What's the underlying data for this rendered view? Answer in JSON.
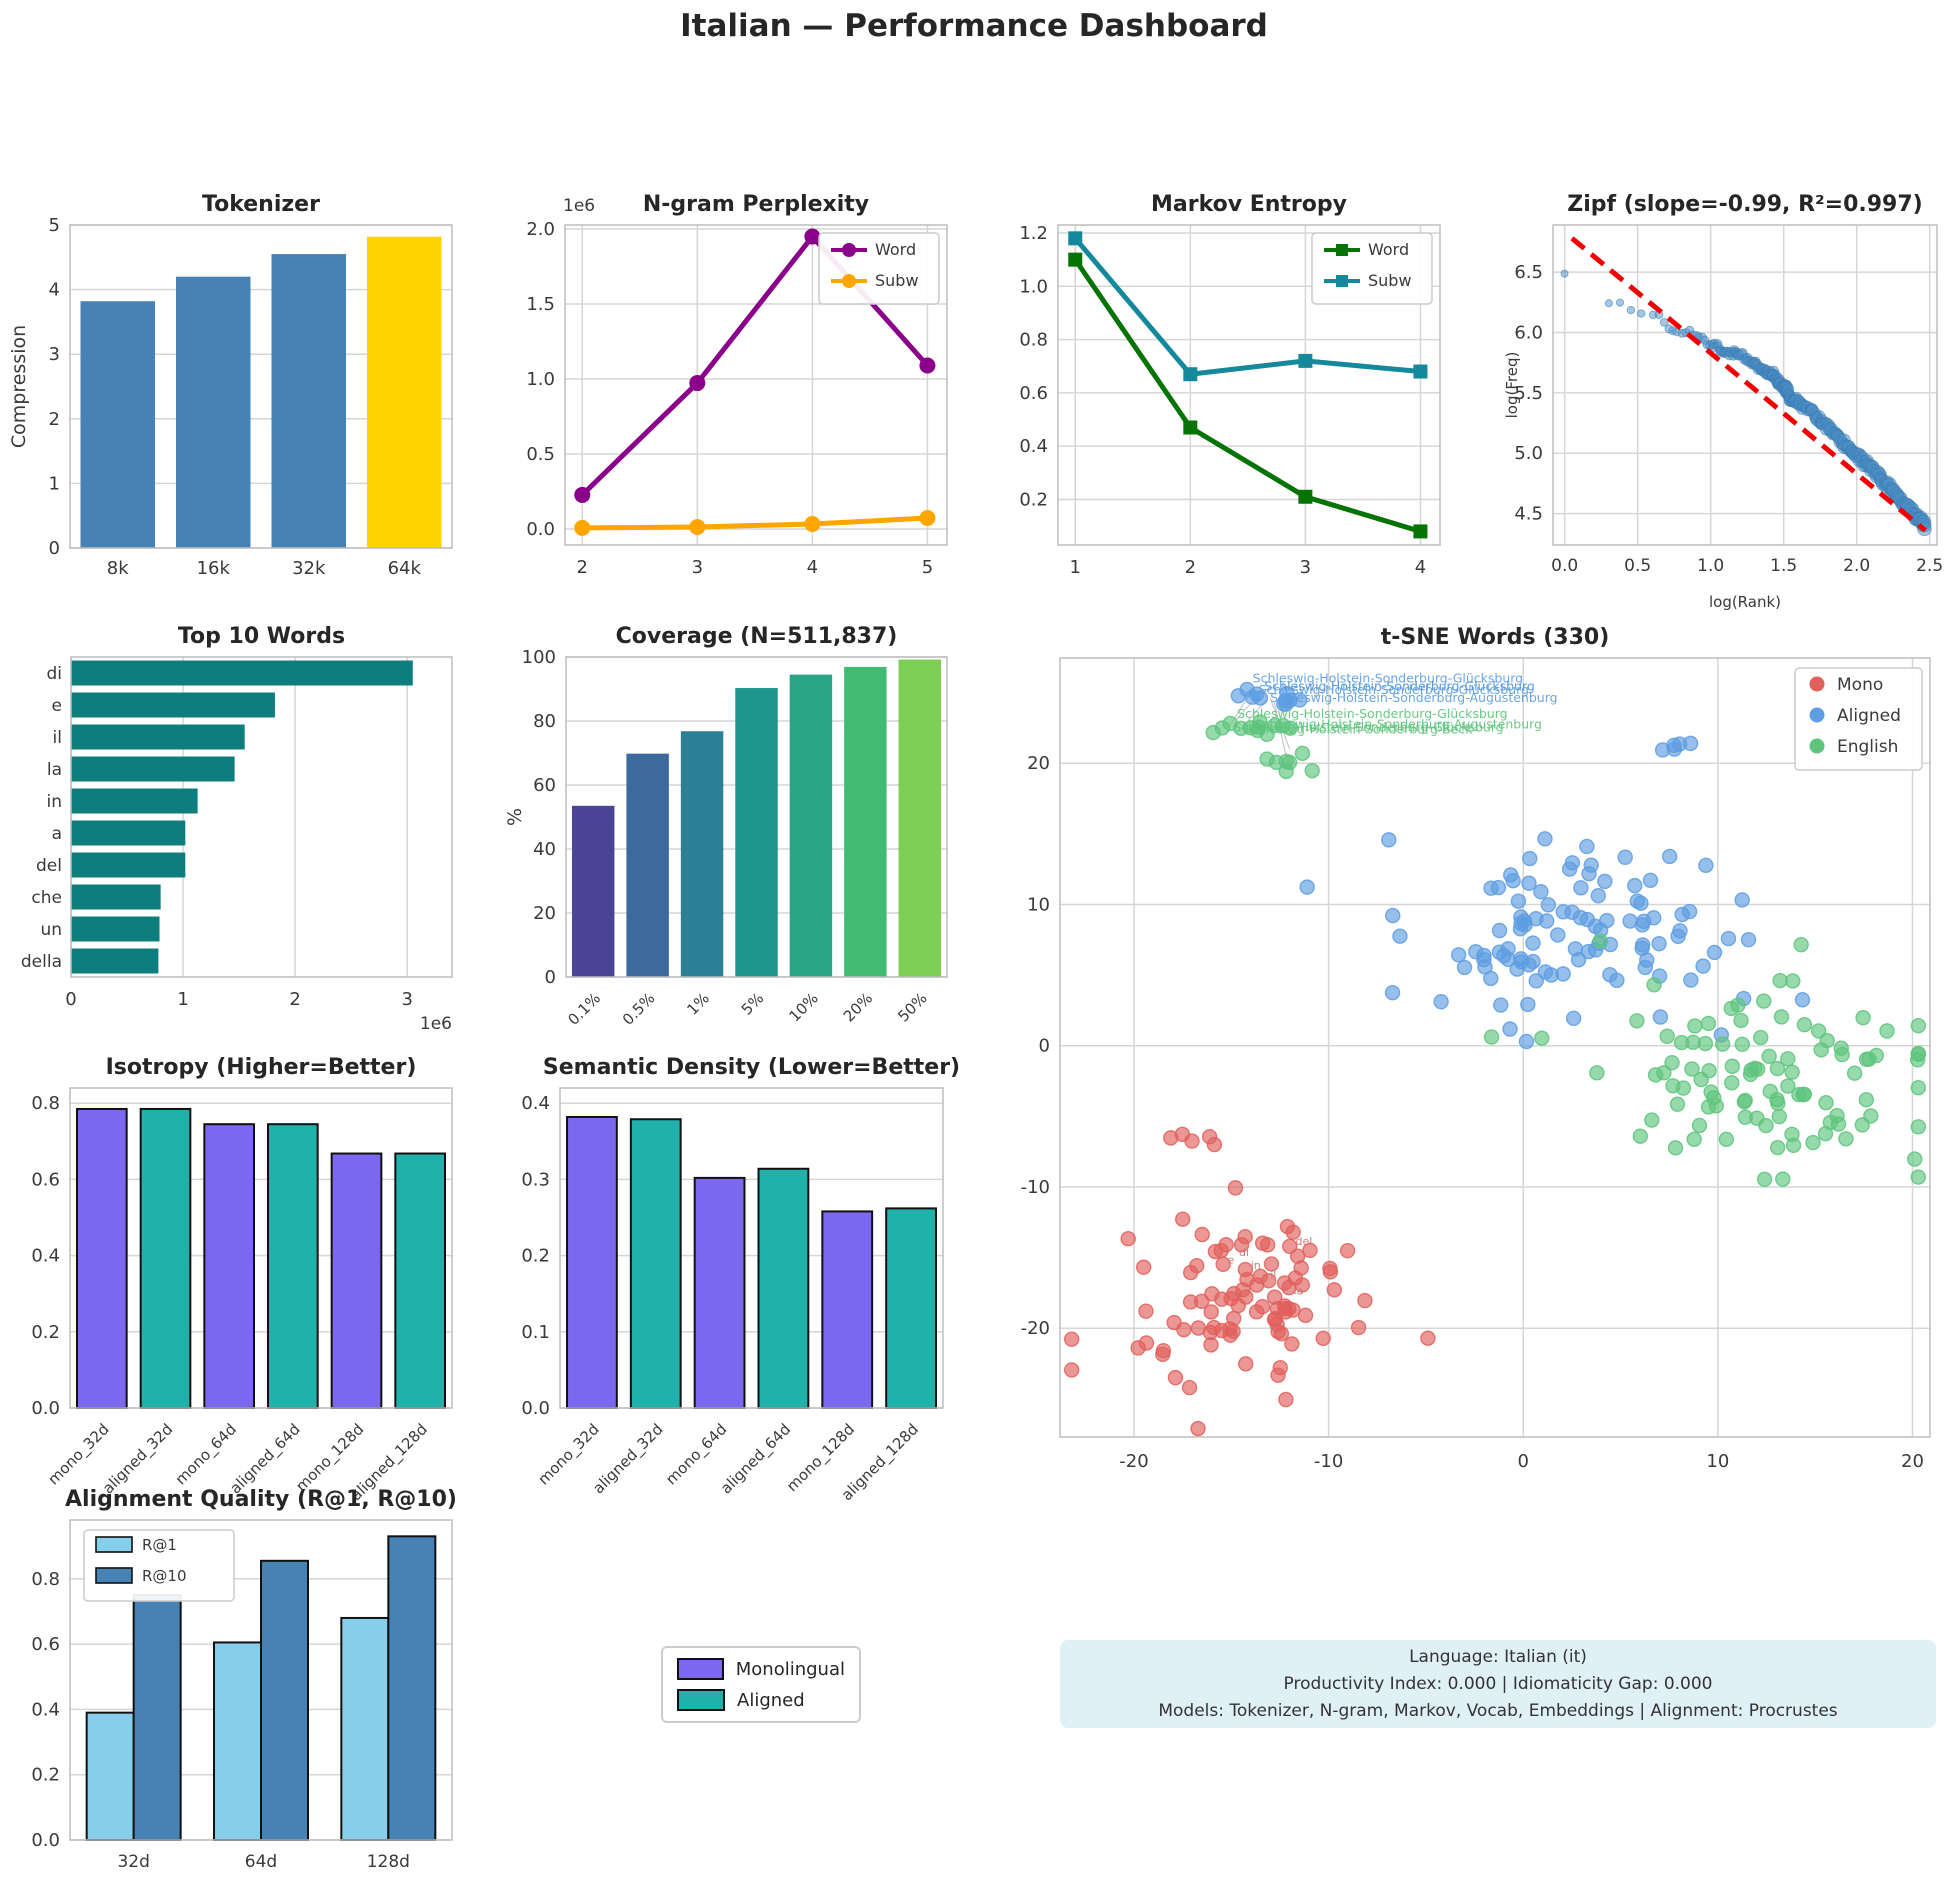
{
  "page_title": "Italian — Performance Dashboard",
  "style": {
    "grid": "#d6d6d6",
    "spine": "#bdbdbd",
    "tick": "#3a3a3a",
    "title": "#262626",
    "bar_blue": "#4682B4",
    "bar_gold": "#FFD300",
    "mono_purple": "#7B68EE",
    "aligned_teal": "#20B2AA"
  },
  "info_box": {
    "lines": [
      "Language: Italian (it)",
      "Productivity Index: 0.000  |  Idiomaticity Gap: 0.000",
      "Models: Tokenizer, N-gram, Markov, Vocab, Embeddings  |  Alignment: Procrustes"
    ]
  },
  "shared_legend": {
    "items": [
      {
        "label": "Monolingual",
        "color": "#7B68EE"
      },
      {
        "label": "Aligned",
        "color": "#20B2AA"
      }
    ]
  },
  "chart_data": [
    {
      "id": "tokenizer",
      "type": "bar",
      "title": "Tokenizer",
      "ylabel": "Compression",
      "categories": [
        "8k",
        "16k",
        "32k",
        "64k"
      ],
      "values": [
        3.82,
        4.2,
        4.55,
        4.82
      ],
      "bar_colors": [
        "#4682B4",
        "#4682B4",
        "#4682B4",
        "#FFD300"
      ],
      "ylim": [
        0,
        5
      ],
      "yticks": [
        0,
        1,
        2,
        3,
        4,
        5
      ],
      "ytick_labels": [
        "0",
        "1",
        "2",
        "3",
        "4",
        "5"
      ]
    },
    {
      "id": "ngram",
      "type": "line",
      "title": "N-gram Perplexity",
      "offset_label": "1e6",
      "x": [
        2,
        3,
        4,
        5
      ],
      "xlim": [
        1.85,
        5.17
      ],
      "xticks": [
        2,
        3,
        4,
        5
      ],
      "xtick_labels": [
        "2",
        "3",
        "4",
        "5"
      ],
      "series": [
        {
          "name": "Word",
          "color": "#8B008B",
          "marker": "circle",
          "values": [
            227000,
            973000,
            1950000,
            1090000
          ]
        },
        {
          "name": "Subw",
          "color": "#FFA500",
          "marker": "circle",
          "values": [
            7000,
            13000,
            33000,
            73000
          ]
        }
      ],
      "ylim": [
        -107000,
        2027000
      ],
      "yticks": [
        0,
        500000,
        1000000,
        1500000,
        2000000
      ],
      "ytick_labels": [
        "0.0",
        "0.5",
        "1.0",
        "1.5",
        "2.0"
      ],
      "legend": "upper-right"
    },
    {
      "id": "markov",
      "type": "line",
      "title": "Markov Entropy",
      "x": [
        1,
        2,
        3,
        4
      ],
      "xlim": [
        0.85,
        4.17
      ],
      "xticks": [
        1,
        2,
        3,
        4
      ],
      "xtick_labels": [
        "1",
        "2",
        "3",
        "4"
      ],
      "series": [
        {
          "name": "Word",
          "color": "#057405",
          "marker": "square",
          "values": [
            1.1,
            0.47,
            0.21,
            0.08
          ]
        },
        {
          "name": "Subw",
          "color": "#15899b",
          "marker": "square",
          "values": [
            1.18,
            0.67,
            0.72,
            0.68
          ]
        }
      ],
      "ylim": [
        0.029,
        1.23
      ],
      "yticks": [
        0.2,
        0.4,
        0.6,
        0.8,
        1.0,
        1.2
      ],
      "ytick_labels": [
        "0.2",
        "0.4",
        "0.6",
        "0.8",
        "1.0",
        "1.2"
      ],
      "legend": "upper-right"
    },
    {
      "id": "zipf",
      "type": "scatter_fit",
      "title": "Zipf (slope=-0.99, R²=0.997)",
      "xlabel": "log(Rank)",
      "ylabel": "log(Freq)",
      "xlim": [
        -0.08,
        2.55
      ],
      "ylim": [
        4.24,
        6.89
      ],
      "xticks": [
        0,
        0.5,
        1.0,
        1.5,
        2.0,
        2.5
      ],
      "xtick_labels": [
        "0.0",
        "0.5",
        "1.0",
        "1.5",
        "2.0",
        "2.5"
      ],
      "yticks": [
        4.5,
        5.0,
        5.5,
        6.0,
        6.5
      ],
      "ytick_labels": [
        "4.5",
        "5.0",
        "5.5",
        "6.0",
        "6.5"
      ],
      "point_color": "#4C8FC7",
      "point_edge": "#3c7cb0",
      "fit_color": "#f00000",
      "fit_line": {
        "x1": 0.05,
        "y1": 6.78,
        "x2": 2.47,
        "y2": 4.36
      },
      "anchors": [
        [
          0,
          6.5
        ],
        [
          0.3,
          6.26
        ],
        [
          0.45,
          6.19
        ],
        [
          0.6,
          6.16
        ],
        [
          0.72,
          6.05
        ],
        [
          0.8,
          6.0
        ],
        [
          0.9,
          5.99
        ],
        [
          1.0,
          5.9
        ],
        [
          1.05,
          5.88
        ],
        [
          1.1,
          5.82
        ],
        [
          1.15,
          5.83
        ],
        [
          1.2,
          5.82
        ],
        [
          1.28,
          5.74
        ],
        [
          1.33,
          5.72
        ],
        [
          1.38,
          5.68
        ],
        [
          1.42,
          5.66
        ],
        [
          1.45,
          5.6
        ],
        [
          1.5,
          5.55
        ],
        [
          1.52,
          5.53
        ],
        [
          1.55,
          5.45
        ],
        [
          1.6,
          5.42
        ],
        [
          1.7,
          5.33
        ],
        [
          1.8,
          5.22
        ],
        [
          1.9,
          5.1
        ],
        [
          2.0,
          4.98
        ],
        [
          2.1,
          4.88
        ],
        [
          2.2,
          4.75
        ],
        [
          2.3,
          4.62
        ],
        [
          2.4,
          4.5
        ],
        [
          2.47,
          4.38
        ]
      ]
    },
    {
      "id": "top_words",
      "type": "hbar",
      "title": "Top 10 Words",
      "offset_label": "1e6",
      "categories": [
        "di",
        "e",
        "il",
        "la",
        "in",
        "a",
        "del",
        "che",
        "un",
        "della"
      ],
      "values": [
        3050000,
        1820000,
        1550000,
        1460000,
        1130000,
        1020000,
        1020000,
        800000,
        790000,
        780000
      ],
      "bar_color": "#0e7d7d",
      "xlim": [
        0,
        3400000
      ],
      "xticks": [
        0,
        1000000,
        2000000,
        3000000
      ],
      "xtick_labels": [
        "0",
        "1",
        "2",
        "3"
      ]
    },
    {
      "id": "coverage",
      "type": "bar",
      "title": "Coverage (N=511,837)",
      "ylabel": "%",
      "categories": [
        "0.1%",
        "0.5%",
        "1%",
        "5%",
        "10%",
        "20%",
        "50%"
      ],
      "values": [
        53.5,
        69.8,
        76.8,
        90.3,
        94.5,
        96.9,
        99.2
      ],
      "bar_colors": [
        "#4a4596",
        "#3c6a9e",
        "#2c7f97",
        "#1f968b",
        "#27a584",
        "#42bb72",
        "#7ccf54"
      ],
      "ylim": [
        0,
        100
      ],
      "yticks": [
        0,
        20,
        40,
        60,
        80,
        100
      ],
      "ytick_labels": [
        "0",
        "20",
        "40",
        "60",
        "80",
        "100"
      ],
      "rotate_xticks": true
    },
    {
      "id": "tsne",
      "type": "scatter_clusters",
      "title": "t-SNE Words (330)",
      "xlim": [
        -23.8,
        20.9
      ],
      "ylim": [
        -27.7,
        27.45
      ],
      "xticks": [
        -20,
        -10,
        0,
        10,
        20
      ],
      "xtick_labels": [
        "-20",
        "-10",
        "0",
        "10",
        "20"
      ],
      "yticks": [
        -20,
        -10,
        0,
        10,
        20
      ],
      "ytick_labels": [
        "-20",
        "-10",
        "0",
        "10",
        "20"
      ],
      "legend": [
        {
          "label": "Mono",
          "color": "#e0605c"
        },
        {
          "label": "Aligned",
          "color": "#5d9de2"
        },
        {
          "label": "English",
          "color": "#5ec47d"
        }
      ],
      "clusters": [
        {
          "name": "mono-main",
          "color": "#e0605c",
          "n": 90,
          "cx": -14.2,
          "cy": -18.8,
          "sx": 3.4,
          "sy": 3.3
        },
        {
          "name": "mono-small",
          "color": "#e0605c",
          "n": 5,
          "cx": -16.9,
          "cy": -6.5,
          "sx": 0.55,
          "sy": 0.2
        },
        {
          "name": "aligned-main",
          "color": "#5d9de2",
          "n": 105,
          "cx": 2.5,
          "cy": 8.2,
          "sx": 4.8,
          "sy": 3.1
        },
        {
          "name": "aligned-top",
          "color": "#5d9de2",
          "n": 11,
          "cx": -13.4,
          "cy": 24.6,
          "sx": 0.9,
          "sy": 0.35
        },
        {
          "name": "aligned-band",
          "color": "#5d9de2",
          "n": 5,
          "cx": 7.6,
          "cy": 21.3,
          "sx": 0.55,
          "sy": 0.2
        },
        {
          "name": "english-main",
          "color": "#5ec47d",
          "n": 100,
          "cx": 12.2,
          "cy": -1.8,
          "sx": 4.3,
          "sy": 3.5
        },
        {
          "name": "english-top",
          "color": "#5ec47d",
          "n": 12,
          "cx": -14.0,
          "cy": 22.6,
          "sx": 1.2,
          "sy": 0.4
        },
        {
          "name": "english-upper",
          "color": "#5ec47d",
          "n": 7,
          "cx": -12.2,
          "cy": 20.2,
          "sx": 1.1,
          "sy": 0.8
        }
      ],
      "links": [
        [
          -13.2,
          24.5,
          -14.2,
          22.9
        ],
        [
          -13.7,
          24.7,
          -14.8,
          23.0
        ],
        [
          -12.8,
          24.4,
          -12.2,
          20.6
        ],
        [
          -14.1,
          24.8,
          -15.1,
          22.6
        ],
        [
          -13.0,
          24.6,
          -12.0,
          21.0
        ]
      ],
      "annotations": [
        {
          "text": "Schleswig-Holstein-Sonderburg-Glücksburg",
          "x": -13.9,
          "y": 25.7,
          "color": "#5d9de2",
          "size": 12.5
        },
        {
          "text": "Schleswig-Holstein-Sonderburg-Glücksburg",
          "x": -13.3,
          "y": 25.15,
          "color": "#4a90d9",
          "size": 12.5
        },
        {
          "text": "Schleswig-Holstein-Sonderburg-Glücksburg",
          "x": -13.6,
          "y": 24.9,
          "color": "#5d9de2",
          "size": 12.5
        },
        {
          "text": "Schleswig-Holstein-Sonderburg-Augustenburg",
          "x": -13.0,
          "y": 24.35,
          "color": "#5d9de2",
          "size": 12.5
        },
        {
          "text": "Schleswig-Holstein-Sonderburg-Glücksburg",
          "x": -14.7,
          "y": 23.2,
          "color": "#5ec47d",
          "size": 12.5
        },
        {
          "text": "Schleswig-Holstein-Sonderburg-Augustenburg",
          "x": -13.8,
          "y": 22.45,
          "color": "#5ec47d",
          "size": 12.5
        },
        {
          "text": "Schleswig-Holstein-Sonderburg-Beck",
          "x": -14.4,
          "y": 22.1,
          "color": "#5ec47d",
          "size": 12.5
        },
        {
          "text": "Schleswig-Holstein-Sonderburg-Glücksburg",
          "x": -14.9,
          "y": 22.25,
          "color": "#5ec47d",
          "size": 12.5
        },
        {
          "text": "del",
          "x": -11.7,
          "y": -14.1,
          "color": "#cf7070",
          "size": 11
        },
        {
          "text": "in",
          "x": -14.0,
          "y": -15.8,
          "color": "#cf7070",
          "size": 11
        },
        {
          "text": "la",
          "x": -11.8,
          "y": -17.6,
          "color": "#cf7070",
          "size": 11
        },
        {
          "text": "di",
          "x": -14.6,
          "y": -14.9,
          "color": "#cf7070",
          "size": 11
        },
        {
          "text": "e",
          "x": -15.2,
          "y": -15.4,
          "color": "#cf7070",
          "size": 11
        },
        {
          "text": "il",
          "x": -13.0,
          "y": -16.5,
          "color": "#cf7070",
          "size": 11
        }
      ]
    },
    {
      "id": "isotropy",
      "type": "bar",
      "title": "Isotropy (Higher=Better)",
      "categories": [
        "mono_32d",
        "aligned_32d",
        "mono_64d",
        "aligned_64d",
        "mono_128d",
        "aligned_128d"
      ],
      "values": [
        0.785,
        0.785,
        0.745,
        0.745,
        0.668,
        0.668
      ],
      "bar_colors": [
        "#7B68EE",
        "#20B2AA",
        "#7B68EE",
        "#20B2AA",
        "#7B68EE",
        "#20B2AA"
      ],
      "edge": "#111111",
      "ylim": [
        0,
        0.84
      ],
      "yticks": [
        0,
        0.2,
        0.4,
        0.6,
        0.8
      ],
      "ytick_labels": [
        "0.0",
        "0.2",
        "0.4",
        "0.6",
        "0.8"
      ],
      "rotate_xticks": true
    },
    {
      "id": "density",
      "type": "bar",
      "title": "Semantic Density (Lower=Better)",
      "categories": [
        "mono_32d",
        "aligned_32d",
        "mono_64d",
        "aligned_64d",
        "mono_128d",
        "aligned_128d"
      ],
      "values": [
        0.382,
        0.379,
        0.302,
        0.314,
        0.258,
        0.262
      ],
      "bar_colors": [
        "#7B68EE",
        "#20B2AA",
        "#7B68EE",
        "#20B2AA",
        "#7B68EE",
        "#20B2AA"
      ],
      "edge": "#111111",
      "ylim": [
        0,
        0.42
      ],
      "yticks": [
        0,
        0.1,
        0.2,
        0.3,
        0.4
      ],
      "ytick_labels": [
        "0.0",
        "0.1",
        "0.2",
        "0.3",
        "0.4"
      ],
      "rotate_xticks": true
    },
    {
      "id": "alignment",
      "type": "grouped_bar",
      "title": "Alignment Quality (R@1, R@10)",
      "categories": [
        "32d",
        "64d",
        "128d"
      ],
      "series": [
        {
          "name": "R@1",
          "color": "#87CEEB",
          "values": [
            0.39,
            0.605,
            0.68
          ]
        },
        {
          "name": "R@10",
          "color": "#4682B4",
          "values": [
            0.75,
            0.855,
            0.93
          ]
        }
      ],
      "edge": "#111111",
      "ylim": [
        0,
        0.98
      ],
      "yticks": [
        0,
        0.2,
        0.4,
        0.6,
        0.8
      ],
      "ytick_labels": [
        "0.0",
        "0.2",
        "0.4",
        "0.6",
        "0.8"
      ],
      "legend": "upper-left"
    }
  ]
}
